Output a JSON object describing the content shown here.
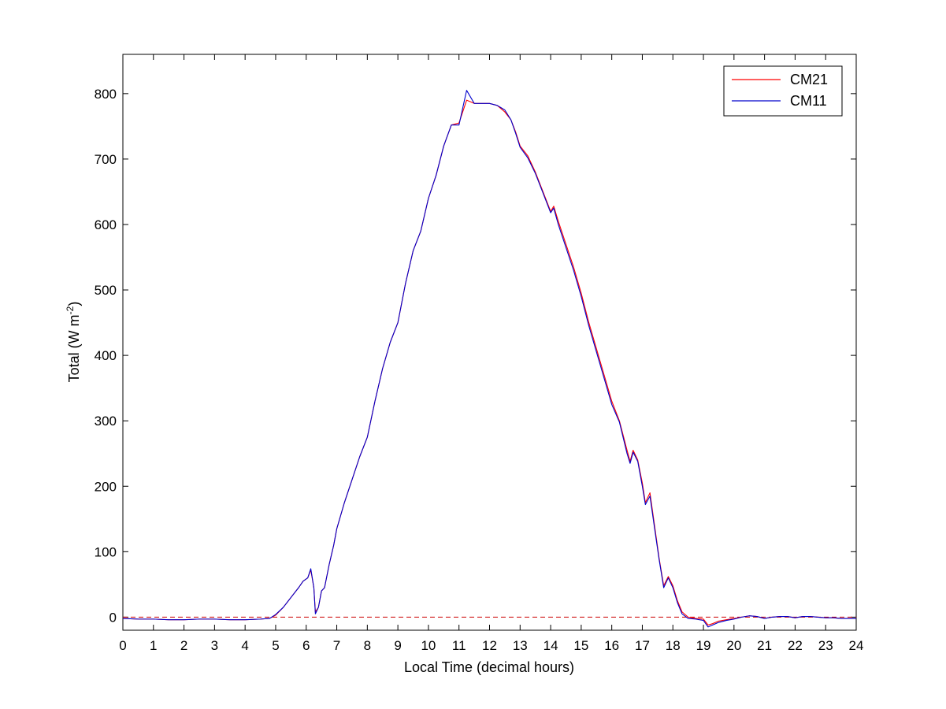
{
  "chart_data": {
    "type": "line",
    "xlabel": "Local Time (decimal hours)",
    "ylabel": "Total (W m",
    "ylabel_sup": "-2",
    "ylabel_suffix": ")",
    "xlim": [
      0,
      24
    ],
    "ylim": [
      -20,
      860
    ],
    "xticks": [
      0,
      1,
      2,
      3,
      4,
      5,
      6,
      7,
      8,
      9,
      10,
      11,
      12,
      13,
      14,
      15,
      16,
      17,
      18,
      19,
      20,
      21,
      22,
      23,
      24
    ],
    "yticks": [
      0,
      100,
      200,
      300,
      400,
      500,
      600,
      700,
      800
    ],
    "grid": false,
    "legend_position": "top-right",
    "zero_reference_line": {
      "y": 0,
      "style": "dashed",
      "color": "#cc0000"
    },
    "series": [
      {
        "name": "CM21",
        "color": "#ff0000",
        "x": [
          0,
          0.5,
          1,
          1.5,
          2,
          2.5,
          3,
          3.5,
          4,
          4.5,
          4.8,
          5,
          5.25,
          5.5,
          5.75,
          5.9,
          6.05,
          6.15,
          6.25,
          6.3,
          6.4,
          6.5,
          6.6,
          6.75,
          6.9,
          7,
          7.25,
          7.5,
          7.75,
          8,
          8.25,
          8.5,
          8.75,
          9,
          9.25,
          9.5,
          9.75,
          10,
          10.25,
          10.5,
          10.75,
          11,
          11.25,
          11.5,
          11.75,
          12,
          12.25,
          12.5,
          12.7,
          12.85,
          13,
          13.25,
          13.5,
          13.75,
          14,
          14.1,
          14.25,
          14.5,
          14.75,
          15,
          15.25,
          15.5,
          15.75,
          16,
          16.25,
          16.5,
          16.6,
          16.7,
          16.85,
          17,
          17.1,
          17.25,
          17.4,
          17.55,
          17.7,
          17.85,
          18,
          18.15,
          18.3,
          18.5,
          18.75,
          19,
          19.15,
          19.3,
          19.5,
          19.75,
          20,
          20.25,
          20.5,
          20.75,
          21,
          21.25,
          21.5,
          21.75,
          22,
          22.25,
          22.5,
          22.75,
          23,
          23.25,
          23.5,
          23.75,
          24
        ],
        "y": [
          -2,
          -3,
          -3,
          -4,
          -4,
          -3,
          -3,
          -4,
          -4,
          -3,
          -2,
          3,
          15,
          30,
          45,
          55,
          60,
          72,
          45,
          8,
          15,
          40,
          45,
          80,
          110,
          135,
          175,
          210,
          245,
          275,
          330,
          380,
          420,
          450,
          510,
          560,
          590,
          640,
          675,
          720,
          752,
          755,
          790,
          785,
          785,
          785,
          782,
          772,
          760,
          742,
          720,
          705,
          680,
          650,
          620,
          628,
          605,
          570,
          535,
          495,
          450,
          410,
          370,
          330,
          300,
          255,
          238,
          255,
          240,
          205,
          175,
          190,
          140,
          90,
          48,
          62,
          48,
          25,
          8,
          0,
          -2,
          -3,
          -12,
          -10,
          -6,
          -4,
          -2,
          0,
          2,
          1,
          -2,
          0,
          1,
          1,
          -1,
          1,
          1,
          0,
          -1,
          -1,
          -2,
          -2,
          -2
        ]
      },
      {
        "name": "CM11",
        "color": "#0000cc",
        "x": [
          0,
          0.5,
          1,
          1.5,
          2,
          2.5,
          3,
          3.5,
          4,
          4.5,
          4.8,
          5,
          5.25,
          5.5,
          5.75,
          5.9,
          6.05,
          6.15,
          6.25,
          6.3,
          6.4,
          6.5,
          6.6,
          6.75,
          6.9,
          7,
          7.25,
          7.5,
          7.75,
          8,
          8.25,
          8.5,
          8.75,
          9,
          9.25,
          9.5,
          9.75,
          10,
          10.25,
          10.5,
          10.75,
          11,
          11.25,
          11.5,
          11.75,
          12,
          12.25,
          12.5,
          12.7,
          12.85,
          13,
          13.25,
          13.5,
          13.75,
          14,
          14.1,
          14.25,
          14.5,
          14.75,
          15,
          15.25,
          15.5,
          15.75,
          16,
          16.25,
          16.5,
          16.6,
          16.7,
          16.85,
          17,
          17.1,
          17.25,
          17.4,
          17.55,
          17.7,
          17.85,
          18,
          18.15,
          18.3,
          18.5,
          18.75,
          19,
          19.15,
          19.3,
          19.5,
          19.75,
          20,
          20.25,
          20.5,
          20.75,
          21,
          21.25,
          21.5,
          21.75,
          22,
          22.25,
          22.5,
          22.75,
          23,
          23.25,
          23.5,
          23.75,
          24
        ],
        "y": [
          -2,
          -3,
          -3,
          -4,
          -4,
          -3,
          -3,
          -4,
          -4,
          -3,
          -2,
          4,
          15,
          30,
          45,
          55,
          60,
          74,
          45,
          5,
          15,
          40,
          45,
          80,
          110,
          135,
          175,
          210,
          245,
          275,
          330,
          380,
          420,
          450,
          510,
          560,
          590,
          640,
          675,
          720,
          752,
          752,
          805,
          785,
          785,
          785,
          782,
          775,
          760,
          740,
          718,
          702,
          678,
          648,
          618,
          625,
          600,
          565,
          530,
          490,
          445,
          405,
          365,
          325,
          298,
          250,
          235,
          252,
          238,
          200,
          172,
          185,
          136,
          88,
          45,
          60,
          45,
          22,
          5,
          -2,
          -3,
          -5,
          -15,
          -12,
          -8,
          -5,
          -3,
          0,
          2,
          1,
          -2,
          0,
          1,
          1,
          -1,
          1,
          1,
          0,
          -1,
          -1,
          -2,
          -2,
          -2
        ]
      }
    ]
  }
}
